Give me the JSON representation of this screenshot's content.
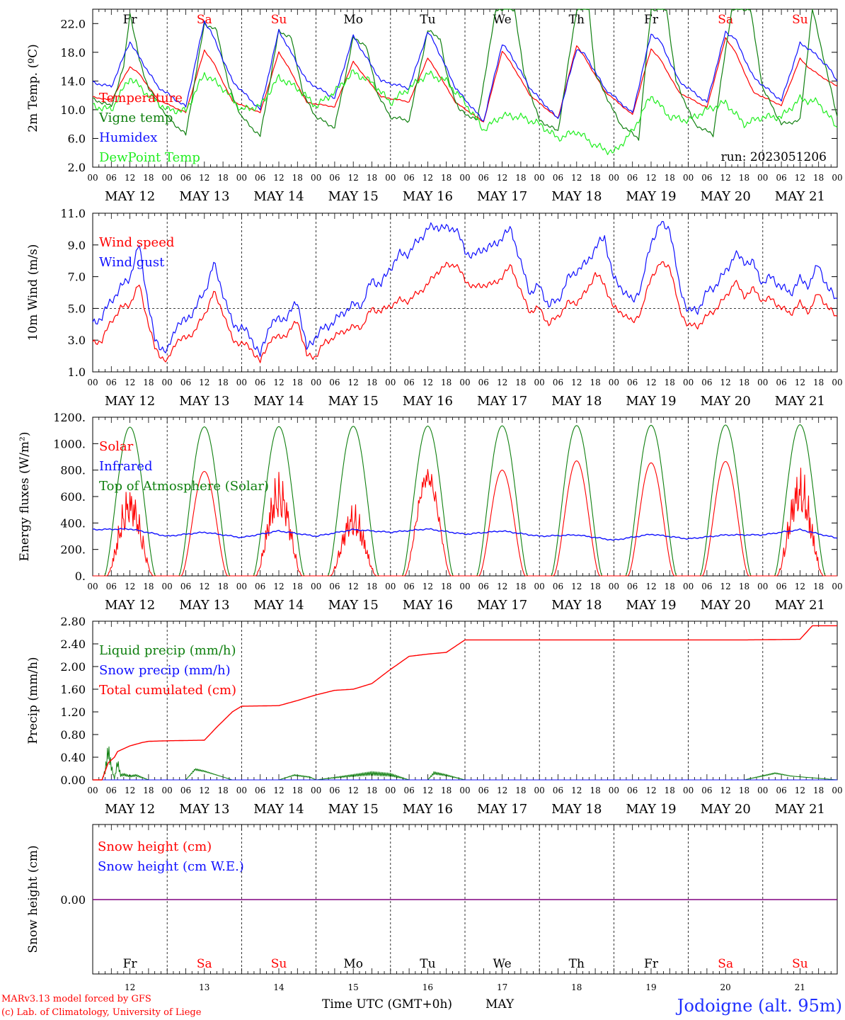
{
  "footer": {
    "model_text": "MARv3.13 model forced by GFS",
    "lab_text": "(c) Lab. of Climatology, University of Liege",
    "xaxis_label": "Time UTC (GMT+0h)",
    "month_label": "MAY",
    "location": "Jodoigne (alt. 95m)"
  },
  "colors": {
    "red": "#ff0000",
    "blue": "#1010ff",
    "darkgreen": "#108010",
    "lightgreen": "#20ee20",
    "purple": "#800080"
  },
  "days": {
    "abbr": [
      "Fr",
      "Sa",
      "Su",
      "Mo",
      "Tu",
      "We",
      "Th",
      "Fr",
      "Sa",
      "Su"
    ],
    "weekend": [
      false,
      true,
      true,
      false,
      false,
      false,
      false,
      false,
      true,
      true
    ],
    "dates": [
      "MAY 12",
      "MAY 13",
      "MAY 14",
      "MAY 15",
      "MAY 16",
      "MAY 17",
      "MAY 18",
      "MAY 19",
      "MAY 20",
      "MAY 21"
    ],
    "day_numbers": [
      "12",
      "13",
      "14",
      "15",
      "16",
      "17",
      "18",
      "19",
      "20",
      "21"
    ],
    "hour_ticks": [
      "00",
      "06",
      "12",
      "18"
    ],
    "final_hour": "00"
  },
  "chart_data": [
    {
      "type": "line",
      "ylabel": "2m Temp. (ºC)",
      "ylim": [
        2.0,
        24.0
      ],
      "yticks": [
        "2.0",
        "6.0",
        "10.0",
        "14.0",
        "18.0",
        "22.0"
      ],
      "run_label": "run: 2023051206",
      "x_unit": "hours from 2023-05-12 00 UTC",
      "series": [
        {
          "name": "Temperature",
          "color_key": "red",
          "x": [
            0,
            6,
            12,
            15,
            21,
            30,
            36,
            39,
            45,
            54,
            60,
            63,
            69,
            78,
            84,
            87,
            93,
            102,
            108,
            111,
            117,
            126,
            132,
            135,
            141,
            150,
            156,
            159,
            165,
            174,
            180,
            183,
            189,
            198,
            204,
            207,
            213,
            222,
            228,
            231,
            237,
            240
          ],
          "y": [
            11.8,
            11.3,
            16.0,
            15.0,
            11.4,
            9.6,
            18.3,
            16.5,
            11.2,
            9.6,
            18.0,
            16.0,
            11.0,
            10.4,
            16.7,
            15.0,
            11.8,
            11.1,
            17.2,
            15.3,
            11.0,
            8.3,
            18.2,
            16.4,
            12.0,
            8.8,
            19.0,
            17.0,
            12.6,
            9.3,
            18.5,
            17.0,
            12.4,
            10.3,
            20.0,
            18.2,
            12.4,
            10.6,
            17.1,
            15.8,
            14.0,
            13.3
          ]
        },
        {
          "name": "Vigne temp",
          "color_key": "darkgreen",
          "x": [
            0,
            6,
            10,
            12,
            15,
            18,
            24,
            30,
            36,
            40,
            44,
            48,
            54,
            60,
            64,
            68,
            72,
            78,
            84,
            88,
            92,
            96,
            102,
            108,
            112,
            114,
            118,
            124,
            130,
            136,
            139,
            144,
            150,
            156,
            160,
            162,
            170,
            176,
            180,
            185,
            188,
            194,
            200,
            206,
            212,
            216,
            222,
            228,
            232,
            240
          ],
          "y": [
            11.5,
            10.5,
            16.0,
            23.5,
            17.0,
            13.0,
            9.0,
            6.5,
            22.0,
            21.0,
            13.0,
            9.0,
            6.3,
            21.0,
            20.0,
            12.0,
            9.0,
            7.5,
            20.0,
            19.0,
            12.0,
            9.0,
            8.5,
            21.0,
            20.0,
            15.0,
            10.0,
            8.5,
            24.0,
            24.0,
            15.0,
            8.5,
            7.0,
            24.0,
            24.0,
            15.0,
            8.0,
            6.0,
            24.0,
            24.0,
            14.0,
            8.0,
            6.5,
            24.0,
            24.0,
            13.0,
            8.0,
            8.5,
            24.0,
            9.0
          ]
        },
        {
          "name": "Humidex",
          "color_key": "blue",
          "x": [
            0,
            6,
            12,
            14,
            21,
            30,
            36,
            38,
            45,
            54,
            60,
            62,
            69,
            78,
            84,
            86,
            93,
            102,
            108,
            110,
            117,
            126,
            132,
            135,
            141,
            150,
            156,
            159,
            165,
            174,
            180,
            183,
            189,
            198,
            204,
            207,
            213,
            222,
            228,
            231,
            237,
            240
          ],
          "y": [
            13.8,
            13.2,
            19.5,
            18.0,
            13.2,
            10.4,
            22.3,
            21.0,
            14.0,
            10.0,
            21.0,
            19.5,
            14.0,
            11.6,
            20.3,
            18.8,
            14.0,
            13.0,
            20.8,
            19.5,
            13.0,
            8.4,
            19.2,
            17.5,
            13.0,
            8.7,
            18.5,
            17.5,
            13.0,
            9.5,
            20.6,
            19.5,
            14.0,
            11.0,
            20.8,
            20.0,
            14.5,
            11.3,
            19.2,
            18.5,
            16.0,
            14.0
          ]
        },
        {
          "name": "DewPoint Temp",
          "color_key": "lightgreen",
          "x": [
            0,
            6,
            12,
            18,
            24,
            30,
            36,
            42,
            48,
            54,
            60,
            66,
            72,
            78,
            84,
            90,
            96,
            102,
            108,
            114,
            120,
            126,
            132,
            138,
            144,
            150,
            156,
            162,
            168,
            174,
            180,
            186,
            192,
            198,
            204,
            210,
            216,
            222,
            228,
            234,
            240
          ],
          "y": [
            10.5,
            10.0,
            14.5,
            12.0,
            10.0,
            9.8,
            15.0,
            13.0,
            10.0,
            10.5,
            14.5,
            13.0,
            10.5,
            12.5,
            15.2,
            13.8,
            11.0,
            13.0,
            15.0,
            14.0,
            11.0,
            7.2,
            9.2,
            9.0,
            8.0,
            6.0,
            7.0,
            5.0,
            4.0,
            7.0,
            12.0,
            9.0,
            8.5,
            10.0,
            11.0,
            8.0,
            9.0,
            9.0,
            11.5,
            11.0,
            7.5
          ]
        }
      ]
    },
    {
      "type": "line",
      "ylabel": "10m Wind (m/s)",
      "ylim": [
        1.0,
        11.0
      ],
      "yticks": [
        "1.0",
        "3.0",
        "5.0",
        "7.0",
        "9.0",
        "11.0"
      ],
      "reference_line": 5.0,
      "x_unit": "hours from 2023-05-12 00 UTC",
      "series": [
        {
          "name": "Wind speed",
          "color_key": "red",
          "x": [
            0,
            3,
            6,
            9,
            12,
            15,
            18,
            20,
            22,
            24,
            27,
            30,
            33,
            36,
            39,
            42,
            45,
            48,
            51,
            54,
            57,
            60,
            63,
            66,
            69,
            72,
            75,
            78,
            81,
            84,
            87,
            90,
            93,
            96,
            99,
            102,
            105,
            108,
            111,
            114,
            117,
            120,
            123,
            126,
            129,
            132,
            135,
            138,
            141,
            144,
            147,
            150,
            153,
            156,
            159,
            162,
            165,
            168,
            171,
            174,
            177,
            180,
            183,
            186,
            189,
            192,
            195,
            198,
            201,
            204,
            207,
            210,
            213,
            216,
            219,
            222,
            225,
            228,
            231,
            234,
            237,
            240
          ],
          "y": [
            2.8,
            3.0,
            4.2,
            5.0,
            5.3,
            6.5,
            4.0,
            2.5,
            2.0,
            1.6,
            3.0,
            3.1,
            3.6,
            4.6,
            6.0,
            4.8,
            3.0,
            2.8,
            2.5,
            1.6,
            3.0,
            3.2,
            3.4,
            4.3,
            2.0,
            2.0,
            2.9,
            3.2,
            3.6,
            3.8,
            3.9,
            5.0,
            4.8,
            5.2,
            5.5,
            5.5,
            6.0,
            6.5,
            7.3,
            7.7,
            7.8,
            6.8,
            6.3,
            6.5,
            6.5,
            7.0,
            7.7,
            6.0,
            4.8,
            5.0,
            4.0,
            4.5,
            5.3,
            5.4,
            6.0,
            7.2,
            6.5,
            5.0,
            4.7,
            4.1,
            4.9,
            7.0,
            7.8,
            7.7,
            5.0,
            3.9,
            3.9,
            4.5,
            5.0,
            5.7,
            6.7,
            5.8,
            6.2,
            5.5,
            5.6,
            5.0,
            4.7,
            5.3,
            4.8,
            6.0,
            5.0,
            4.5
          ]
        },
        {
          "name": "Wind gust",
          "color_key": "blue",
          "x": [
            0,
            3,
            6,
            9,
            12,
            15,
            18,
            20,
            22,
            24,
            27,
            30,
            33,
            36,
            39,
            42,
            45,
            48,
            51,
            54,
            57,
            60,
            63,
            66,
            69,
            72,
            75,
            78,
            81,
            84,
            87,
            90,
            93,
            96,
            99,
            102,
            105,
            108,
            111,
            114,
            117,
            120,
            123,
            126,
            129,
            132,
            135,
            138,
            141,
            144,
            147,
            150,
            153,
            156,
            159,
            162,
            165,
            168,
            171,
            174,
            177,
            180,
            183,
            186,
            189,
            192,
            195,
            198,
            201,
            204,
            207,
            210,
            213,
            216,
            219,
            222,
            225,
            228,
            231,
            234,
            237,
            240
          ],
          "y": [
            4.0,
            4.5,
            5.5,
            6.3,
            7.0,
            9.0,
            5.2,
            3.0,
            2.6,
            2.2,
            4.0,
            4.2,
            5.0,
            6.0,
            7.8,
            6.0,
            4.0,
            3.8,
            3.2,
            2.0,
            4.0,
            4.3,
            4.5,
            5.5,
            2.4,
            3.3,
            3.8,
            4.2,
            4.8,
            5.2,
            5.3,
            6.8,
            6.5,
            7.6,
            8.4,
            8.5,
            9.3,
            10.0,
            10.2,
            10.0,
            10.1,
            8.6,
            8.3,
            8.8,
            8.9,
            9.5,
            10.0,
            7.8,
            6.0,
            6.4,
            5.2,
            5.5,
            6.8,
            7.4,
            7.8,
            8.8,
            9.5,
            6.8,
            6.2,
            5.4,
            6.5,
            9.2,
            10.3,
            10.1,
            6.5,
            4.8,
            4.9,
            6.0,
            6.5,
            7.3,
            8.4,
            8.0,
            7.8,
            6.6,
            7.0,
            6.3,
            6.0,
            6.8,
            6.5,
            7.8,
            6.2,
            5.6
          ]
        }
      ]
    },
    {
      "type": "line",
      "ylabel": "Energy fluxes (W/m²)",
      "ylim": [
        0,
        1200
      ],
      "yticks": [
        "0.",
        "200.",
        "400.",
        "600.",
        "800.",
        "1000.",
        "1200."
      ],
      "x_unit": "hours from 2023-05-12 00 UTC",
      "series": [
        {
          "name": "Solar",
          "color_key": "red",
          "daily_peak": [
            700,
            790,
            810,
            560,
            830,
            800,
            870,
            855,
            865,
            840
          ]
        },
        {
          "name": "Infrared",
          "color_key": "blue",
          "x": [
            0,
            12,
            24,
            36,
            48,
            60,
            72,
            84,
            96,
            108,
            120,
            132,
            144,
            156,
            168,
            180,
            192,
            204,
            216,
            228,
            240
          ],
          "y": [
            350,
            355,
            300,
            330,
            290,
            340,
            300,
            350,
            330,
            355,
            315,
            340,
            300,
            310,
            270,
            315,
            280,
            310,
            310,
            350,
            285
          ]
        },
        {
          "name": "Top of Atmosphere (Solar)",
          "color_key": "darkgreen",
          "daily_peak": [
            1125,
            1127,
            1129,
            1131,
            1133,
            1135,
            1137,
            1139,
            1141,
            1143
          ]
        }
      ]
    },
    {
      "type": "line",
      "ylabel": "Precip (mm/h)",
      "ylim": [
        0.0,
        2.8
      ],
      "yticks": [
        "0.00",
        "0.40",
        "0.80",
        "1.20",
        "1.60",
        "2.00",
        "2.40",
        "2.80"
      ],
      "x_unit": "hours from 2023-05-12 00 UTC",
      "series": [
        {
          "name": "Liquid precip (mm/h)",
          "color_key": "darkgreen",
          "x": [
            0,
            3,
            4,
            5,
            6,
            7,
            8,
            9,
            10,
            12,
            14,
            18,
            24,
            30,
            33,
            36,
            40,
            45,
            48,
            60,
            65,
            70,
            72,
            84,
            90,
            96,
            102,
            108,
            110,
            114,
            120,
            132,
            136,
            144,
            210,
            220,
            225,
            240
          ],
          "y": [
            0,
            0,
            0.2,
            0.68,
            0.3,
            0.02,
            0.4,
            0.1,
            0.12,
            0.08,
            0.1,
            0,
            0,
            0,
            0.22,
            0.18,
            0.1,
            0,
            0,
            0,
            0.1,
            0.06,
            0,
            0.1,
            0.15,
            0.12,
            0,
            0,
            0.15,
            0.1,
            0,
            0,
            0,
            0,
            0,
            0.14,
            0.08,
            0
          ]
        },
        {
          "name": "Snow precip (mm/h)",
          "color_key": "blue",
          "x": [
            0,
            240
          ],
          "y": [
            0,
            0
          ]
        },
        {
          "name": "Total cumulated (cm)",
          "color_key": "red",
          "x": [
            0,
            3,
            5,
            7,
            8,
            10,
            12,
            14,
            16,
            18,
            24,
            36,
            40,
            45,
            48,
            60,
            66,
            72,
            78,
            84,
            90,
            96,
            102,
            108,
            114,
            120,
            132,
            150,
            180,
            210,
            228,
            232,
            240
          ],
          "y": [
            0,
            0,
            0.3,
            0.4,
            0.5,
            0.55,
            0.6,
            0.63,
            0.66,
            0.68,
            0.69,
            0.7,
            0.93,
            1.2,
            1.3,
            1.31,
            1.4,
            1.5,
            1.58,
            1.6,
            1.7,
            1.95,
            2.18,
            2.22,
            2.25,
            2.47,
            2.47,
            2.47,
            2.47,
            2.47,
            2.48,
            2.72,
            2.72
          ]
        }
      ]
    },
    {
      "type": "line",
      "ylabel": "Snow height (cm)",
      "yticks": [
        "0.00"
      ],
      "series": [
        {
          "name": "Snow height (cm)",
          "color_key": "red",
          "x": [
            0,
            240
          ],
          "y": [
            0,
            0
          ]
        },
        {
          "name": "Snow height (cm W.E.)",
          "color_key": "blue",
          "x": [
            0,
            240
          ],
          "y": [
            0,
            0
          ]
        }
      ]
    }
  ]
}
